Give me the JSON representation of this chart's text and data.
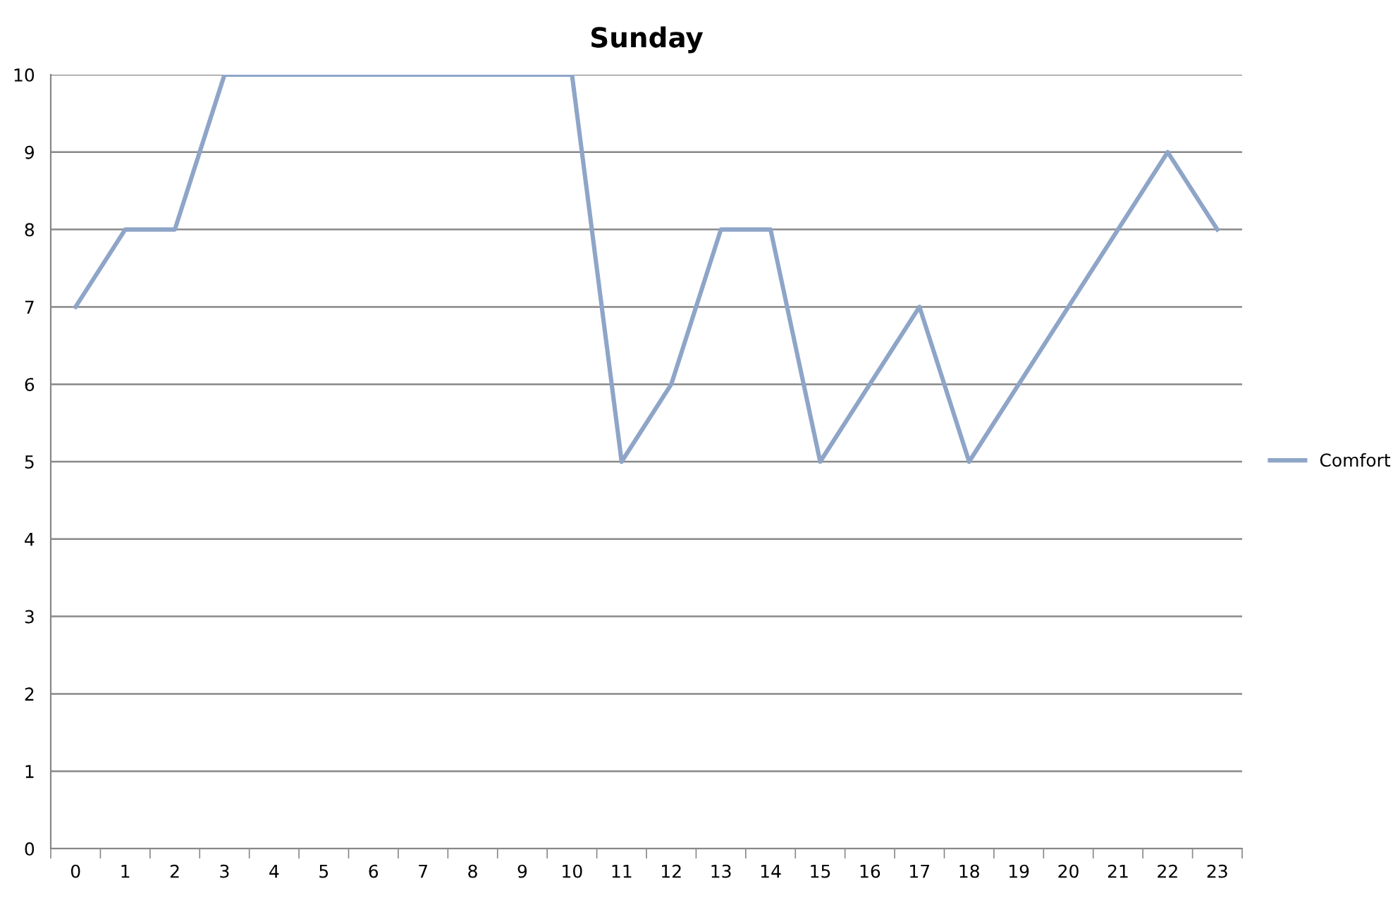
{
  "chart_data": {
    "type": "line",
    "title": "Sunday",
    "categories": [
      "0",
      "1",
      "2",
      "3",
      "4",
      "5",
      "6",
      "7",
      "8",
      "9",
      "10",
      "11",
      "12",
      "13",
      "14",
      "15",
      "16",
      "17",
      "18",
      "19",
      "20",
      "21",
      "22",
      "23"
    ],
    "series": [
      {
        "name": "Comfort",
        "color": "#8ea5c8",
        "values": [
          7,
          8,
          8,
          10,
          10,
          10,
          10,
          10,
          10,
          10,
          10,
          5,
          6,
          8,
          8,
          5,
          6,
          7,
          5,
          6,
          7,
          8,
          9,
          8
        ]
      }
    ],
    "ylim": [
      0,
      10
    ],
    "yticks": [
      0,
      1,
      2,
      3,
      4,
      5,
      6,
      7,
      8,
      9,
      10
    ],
    "grid": "y",
    "legend": "right",
    "marker": "none",
    "line_style": "solid"
  }
}
